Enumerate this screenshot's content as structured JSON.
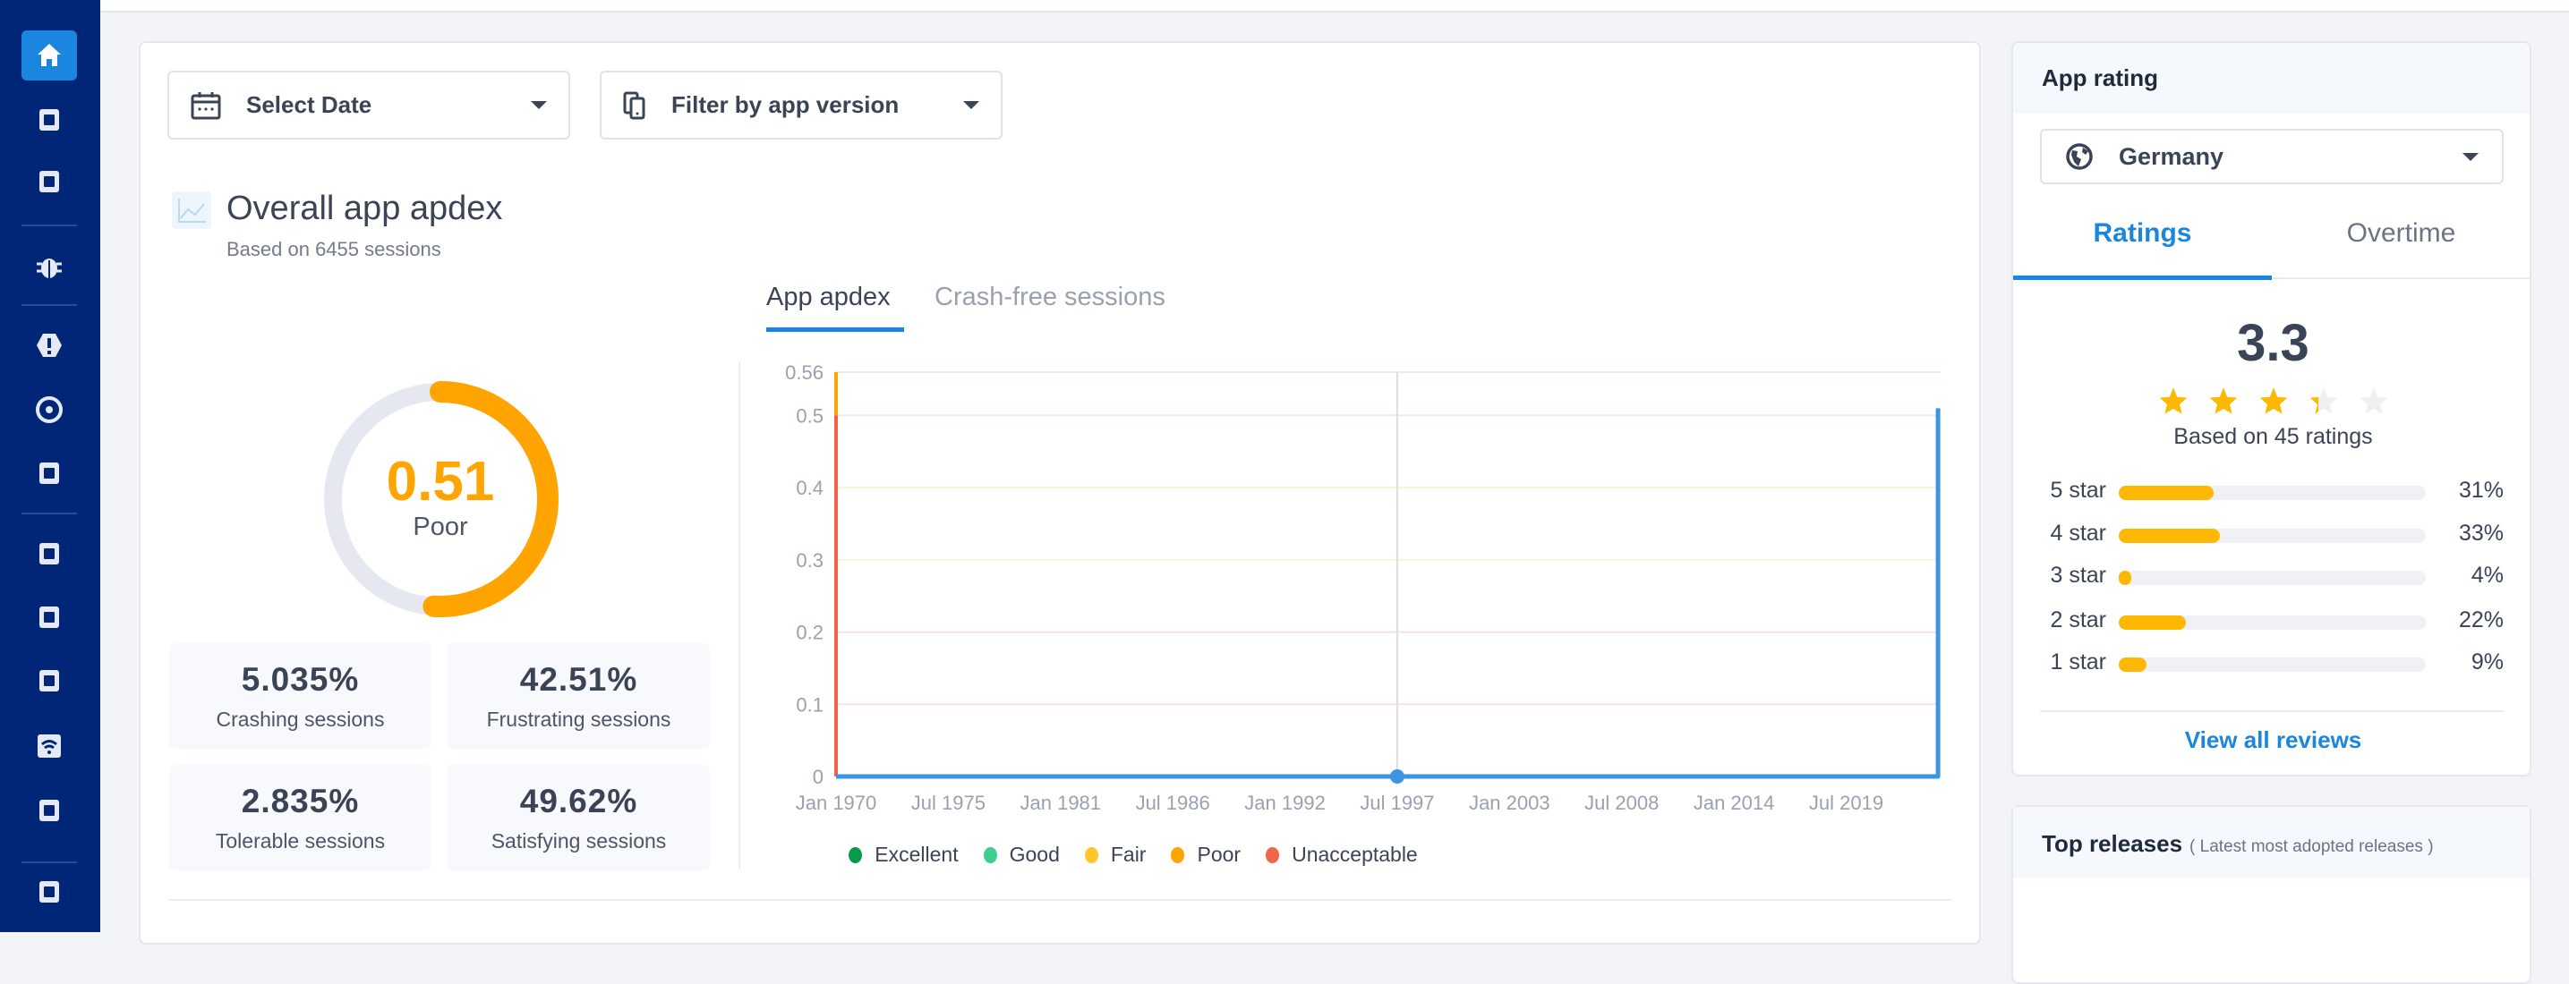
{
  "sidebar": {
    "items": [
      {
        "icon": "home-icon",
        "active": true
      },
      {
        "icon": "device-chart-icon"
      },
      {
        "icon": "copies-icon"
      },
      {
        "icon": "bug-icon"
      },
      {
        "icon": "alert-icon"
      },
      {
        "icon": "dashboard-icon"
      },
      {
        "icon": "crash-close-icon"
      },
      {
        "icon": "rocket-icon"
      },
      {
        "icon": "screen-flow-icon"
      },
      {
        "icon": "loading-icon"
      },
      {
        "icon": "wifi-icon"
      },
      {
        "icon": "settings-toggle-icon"
      },
      {
        "icon": "replay-icon"
      }
    ]
  },
  "filters": {
    "date_label": "Select Date",
    "version_label": "Filter by app version"
  },
  "apdex": {
    "title": "Overall app apdex",
    "subtitle": "Based on 6455 sessions",
    "score": "0.51",
    "score_value": 0.51,
    "rating": "Poor",
    "accent": "#ffa400",
    "stats": [
      {
        "value": "5.035%",
        "label": "Crashing sessions"
      },
      {
        "value": "42.51%",
        "label": "Frustrating sessions"
      },
      {
        "value": "2.835%",
        "label": "Tolerable sessions"
      },
      {
        "value": "49.62%",
        "label": "Satisfying sessions"
      }
    ],
    "tabs": [
      {
        "label": "App apdex",
        "active": true
      },
      {
        "label": "Crash-free sessions"
      }
    ]
  },
  "chart_data": {
    "type": "line",
    "x_ticks": [
      "Jan 1970",
      "Jul 1975",
      "Jan 1981",
      "Jul 1986",
      "Jan 1992",
      "Jul 1997",
      "Jan 2003",
      "Jul 2008",
      "Jan 2014",
      "Jul 2019"
    ],
    "y_ticks": [
      "0",
      "0.1",
      "0.2",
      "0.3",
      "0.4",
      "0.5",
      "0.56"
    ],
    "xlim": [
      "1970-01",
      "2024-02"
    ],
    "ylim": [
      0,
      0.56
    ],
    "series": [
      {
        "color": "#3b95e3",
        "points": [
          {
            "x": "1970-01",
            "y": 0
          },
          {
            "x": "1997-07",
            "y": 0
          },
          {
            "x": "2024-01",
            "y": 0
          },
          {
            "x": "2024-01",
            "y": 0.51
          }
        ]
      }
    ],
    "crosshair": {
      "x": "1997-07",
      "y": 0
    },
    "zones": [
      {
        "name": "Unacceptable",
        "from": 0,
        "to": 0.5,
        "color": "#f0654a"
      },
      {
        "name": "Poor",
        "from": 0.5,
        "to": 0.56,
        "color": "#ffa400"
      }
    ],
    "legend": [
      {
        "name": "Excellent",
        "color": "#0a9a4c"
      },
      {
        "name": "Good",
        "color": "#3ccf8e"
      },
      {
        "name": "Fair",
        "color": "#ffc72c"
      },
      {
        "name": "Poor",
        "color": "#ffa400"
      },
      {
        "name": "Unacceptable",
        "color": "#f0654a"
      }
    ],
    "legend_placement": "bottom",
    "grid": true
  },
  "rating": {
    "title": "App rating",
    "country": "Germany",
    "tabs": [
      {
        "label": "Ratings",
        "active": true
      },
      {
        "label": "Overtime"
      }
    ],
    "score": "3.3",
    "score_value": 3.3,
    "based_on": "Based on 45 ratings",
    "rows": [
      {
        "label": "5 star",
        "pct": "31%",
        "value": 31
      },
      {
        "label": "4 star",
        "pct": "33%",
        "value": 33
      },
      {
        "label": "3 star",
        "pct": "4%",
        "value": 4
      },
      {
        "label": "2 star",
        "pct": "22%",
        "value": 22
      },
      {
        "label": "1 star",
        "pct": "9%",
        "value": 9
      }
    ],
    "view_all": "View all reviews",
    "star_color": "#ffb800"
  },
  "releases": {
    "title": "Top releases",
    "subtitle": "( Latest most adopted releases )"
  }
}
